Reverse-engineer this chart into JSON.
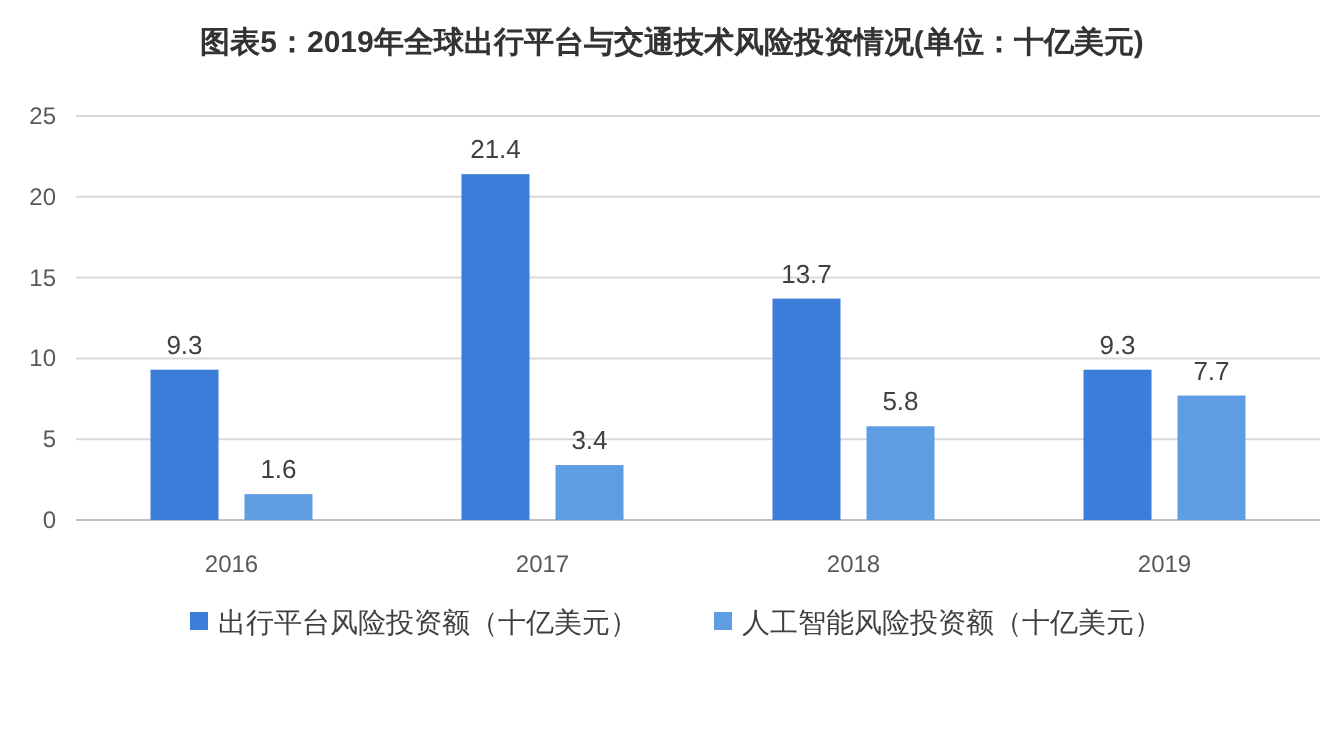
{
  "chart_data": {
    "type": "bar",
    "title": "图表5：2019年全球出行平台与交通技术风险投资情况(单位：十亿美元)",
    "categories": [
      "2016",
      "2017",
      "2018",
      "2019"
    ],
    "series": [
      {
        "name": "出行平台风险投资额（十亿美元）",
        "color": "#3b7dd8",
        "values": [
          9.3,
          21.4,
          13.7,
          9.3
        ]
      },
      {
        "name": "人工智能风险投资额（十亿美元）",
        "color": "#5f9de3",
        "values": [
          1.6,
          3.4,
          5.8,
          7.7
        ]
      }
    ],
    "ylim": [
      0,
      25
    ],
    "yticks": [
      0,
      5,
      10,
      15,
      20,
      25
    ],
    "grid": "y",
    "legend": "bottom",
    "data_labels": true
  }
}
